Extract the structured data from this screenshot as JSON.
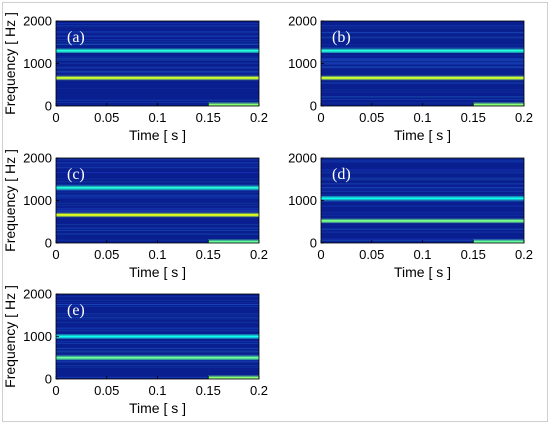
{
  "chart_data": [
    {
      "type": "heatmap",
      "panel_label": "(a)",
      "xlabel": "Time [ s ]",
      "ylabel": "Frequency [ Hz ]",
      "xlim": [
        0,
        0.2
      ],
      "ylim": [
        0,
        2000
      ],
      "x_ticks": [
        "0",
        "0.05",
        "0.1",
        "0.15",
        "0.2"
      ],
      "y_ticks": [
        "0",
        "1000",
        "2000"
      ],
      "colormap": "jet",
      "background_color": "#0a1f8f",
      "components": [
        {
          "freq": 660,
          "t_start": 0,
          "t_end": 0.2,
          "intensity": 0.8
        },
        {
          "freq": 1300,
          "t_start": 0,
          "t_end": 0.2,
          "intensity": 0.3
        },
        {
          "freq": 30,
          "t_start": 0.15,
          "t_end": 0.2,
          "intensity": 0.6
        }
      ]
    },
    {
      "type": "heatmap",
      "panel_label": "(b)",
      "xlabel": "Time [ s ]",
      "ylabel": "",
      "xlim": [
        0,
        0.2
      ],
      "ylim": [
        0,
        2000
      ],
      "x_ticks": [
        "0",
        "0.05",
        "0.1",
        "0.15",
        "0.2"
      ],
      "y_ticks": [
        "0",
        "1000",
        "2000"
      ],
      "colormap": "jet",
      "background_color": "#0a1f8f",
      "components": [
        {
          "freq": 660,
          "t_start": 0,
          "t_end": 0.2,
          "intensity": 0.8
        },
        {
          "freq": 1300,
          "t_start": 0,
          "t_end": 0.2,
          "intensity": 0.3
        },
        {
          "freq": 30,
          "t_start": 0.15,
          "t_end": 0.2,
          "intensity": 0.6
        }
      ]
    },
    {
      "type": "heatmap",
      "panel_label": "(c)",
      "xlabel": "Time [ s ]",
      "ylabel": "Frequency [ Hz ]",
      "xlim": [
        0,
        0.2
      ],
      "ylim": [
        0,
        2000
      ],
      "x_ticks": [
        "0",
        "0.05",
        "0.1",
        "0.15",
        "0.2"
      ],
      "y_ticks": [
        "0",
        "1000",
        "2000"
      ],
      "colormap": "jet",
      "background_color": "#0a1f8f",
      "components": [
        {
          "freq": 660,
          "t_start": 0,
          "t_end": 0.2,
          "intensity": 0.85
        },
        {
          "freq": 1300,
          "t_start": 0,
          "t_end": 0.2,
          "intensity": 0.3
        },
        {
          "freq": 30,
          "t_start": 0.15,
          "t_end": 0.2,
          "intensity": 0.5
        }
      ]
    },
    {
      "type": "heatmap",
      "panel_label": "(d)",
      "xlabel": "Time [ s ]",
      "ylabel": "",
      "xlim": [
        0,
        0.2
      ],
      "ylim": [
        0,
        2000
      ],
      "x_ticks": [
        "0",
        "0.05",
        "0.1",
        "0.15",
        "0.2"
      ],
      "y_ticks": [
        "0",
        "1000",
        "2000"
      ],
      "colormap": "jet",
      "background_color": "#0a1f8f",
      "components": [
        {
          "freq": 520,
          "t_start": 0,
          "t_end": 0.2,
          "intensity": 0.55
        },
        {
          "freq": 1050,
          "t_start": 0,
          "t_end": 0.2,
          "intensity": 0.25
        },
        {
          "freq": 30,
          "t_start": 0.15,
          "t_end": 0.2,
          "intensity": 0.5
        }
      ]
    },
    {
      "type": "heatmap",
      "panel_label": "(e)",
      "xlabel": "Time [ s ]",
      "ylabel": "Frequency [ Hz ]",
      "xlim": [
        0,
        0.2
      ],
      "ylim": [
        0,
        2000
      ],
      "x_ticks": [
        "0",
        "0.05",
        "0.1",
        "0.15",
        "0.2"
      ],
      "y_ticks": [
        "0",
        "1000",
        "2000"
      ],
      "colormap": "jet",
      "background_color": "#0a1f8f",
      "components": [
        {
          "freq": 500,
          "t_start": 0,
          "t_end": 0.2,
          "intensity": 0.5
        },
        {
          "freq": 1000,
          "t_start": 0,
          "t_end": 0.2,
          "intensity": 0.25
        },
        {
          "freq": 30,
          "t_start": 0.15,
          "t_end": 0.2,
          "intensity": 0.6
        }
      ]
    }
  ]
}
